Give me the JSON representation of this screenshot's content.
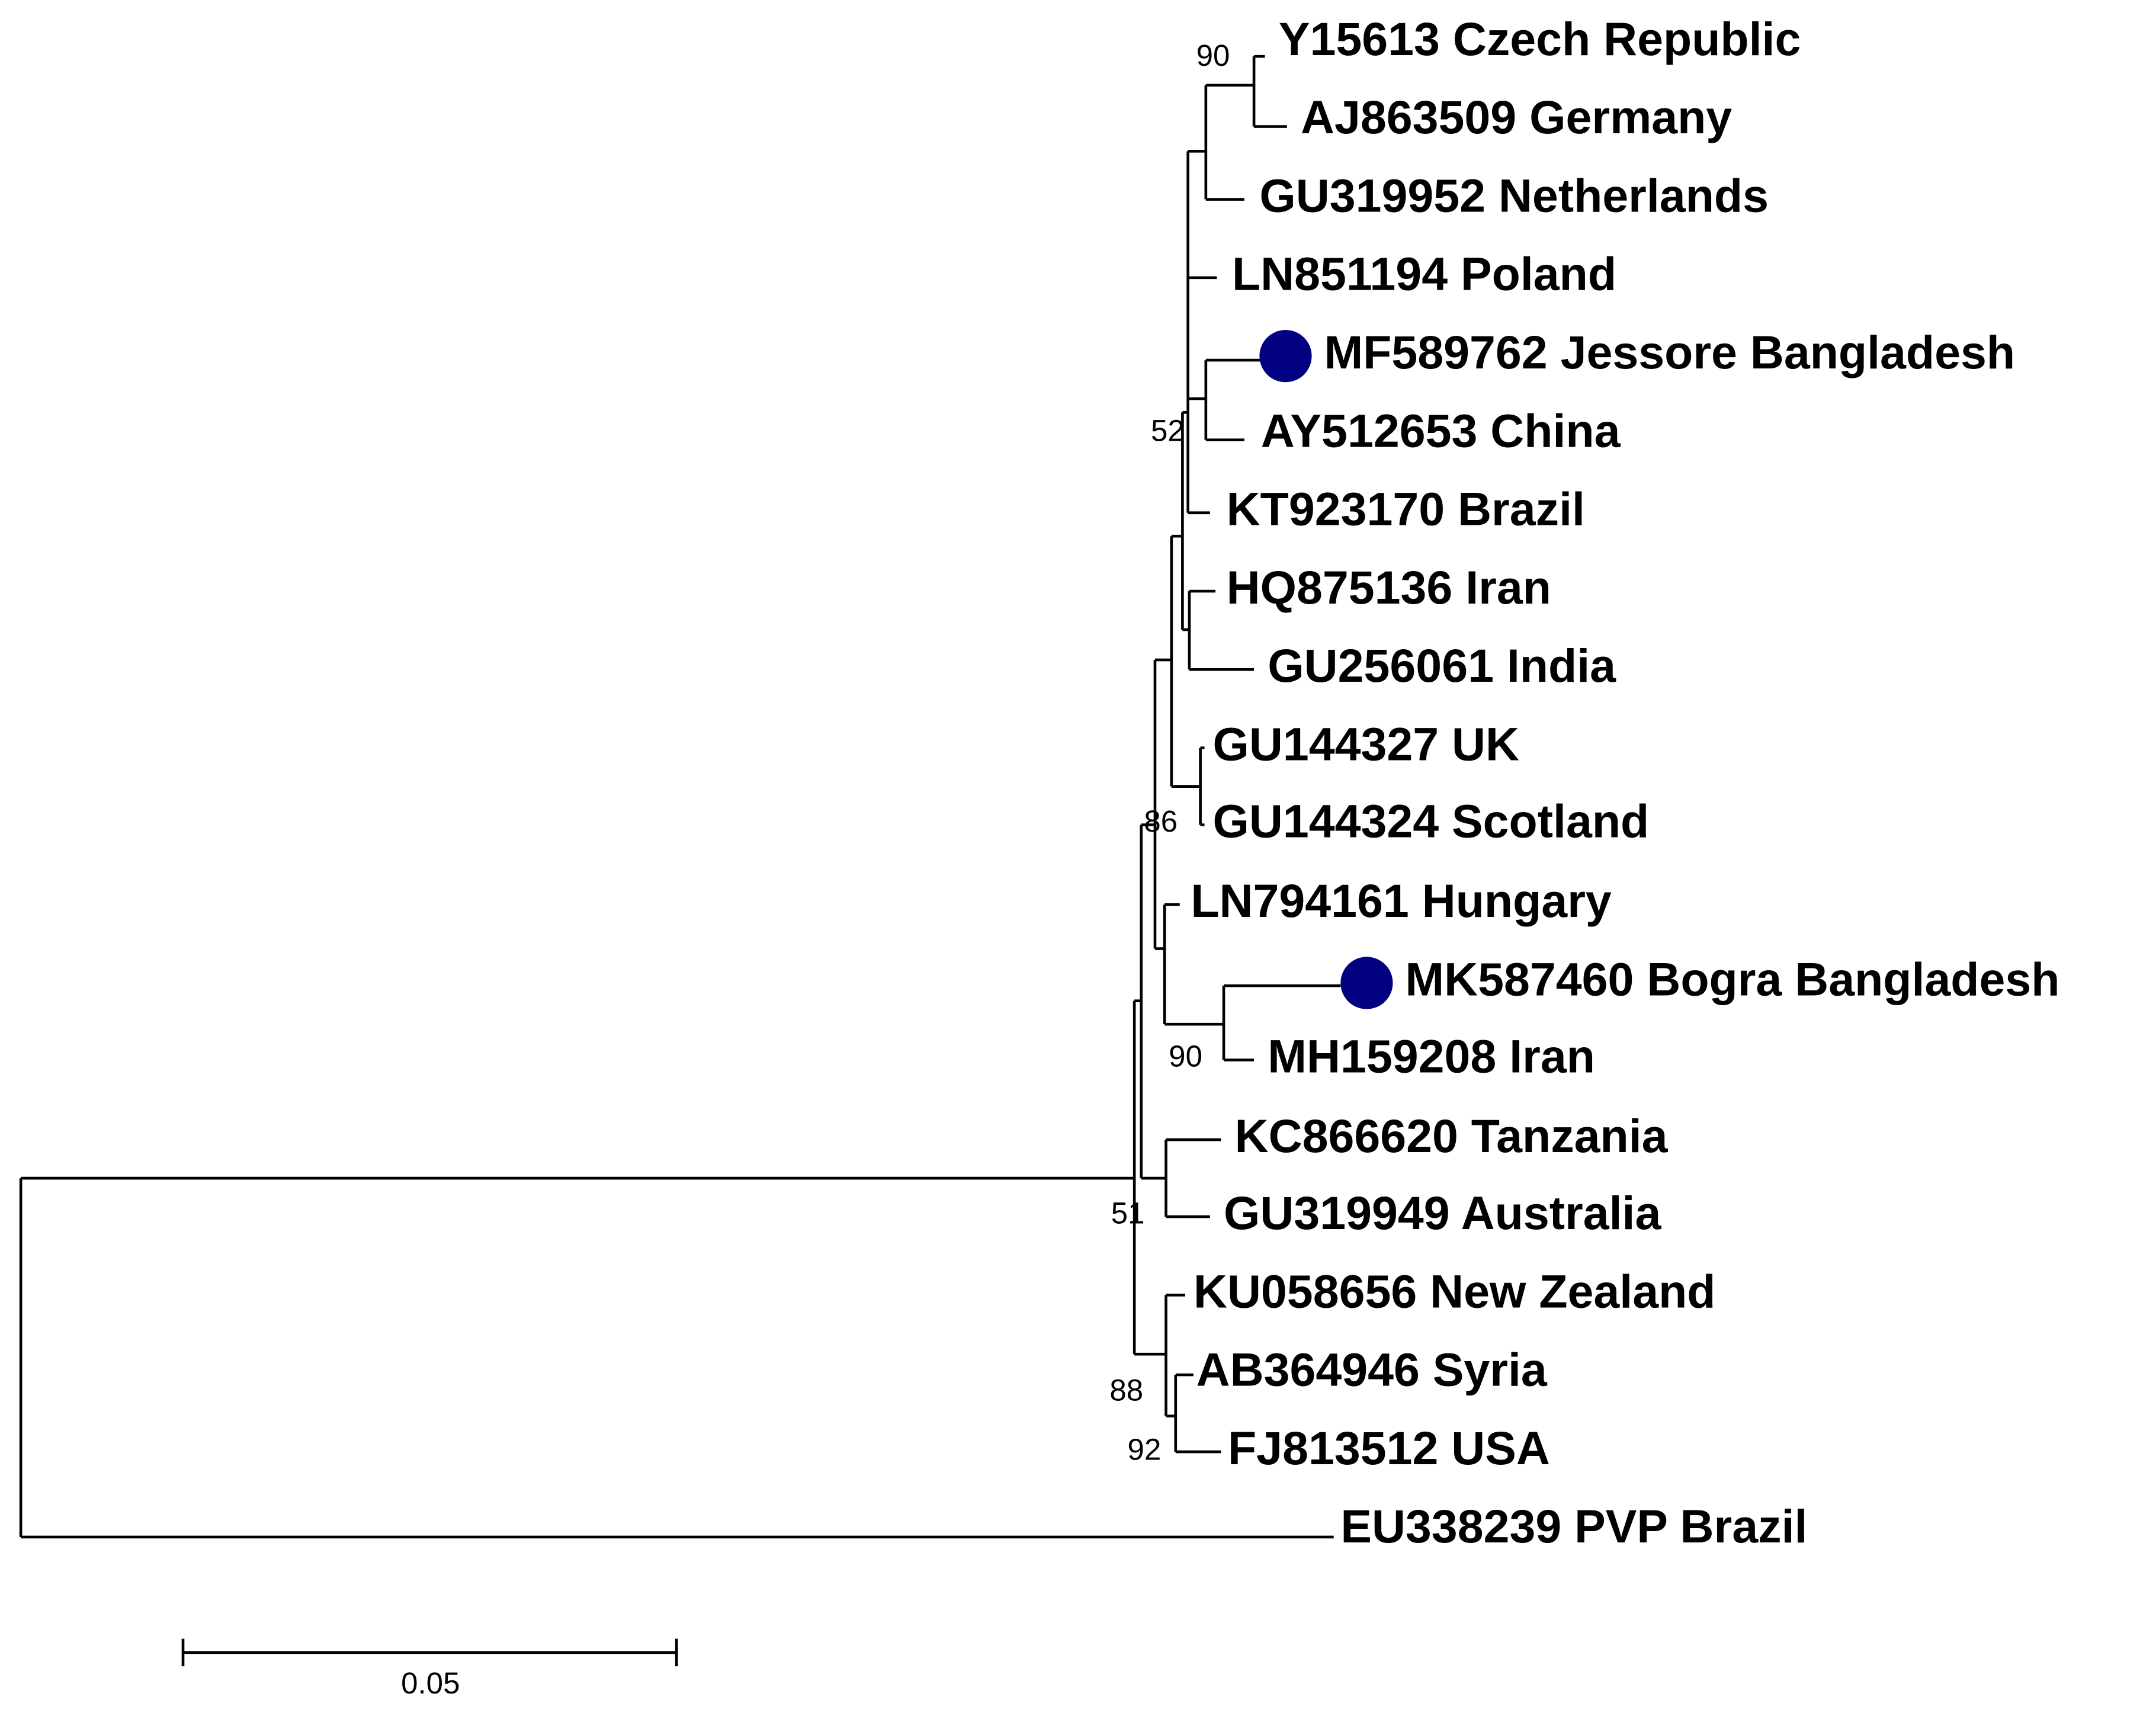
{
  "leaves": [
    {
      "label": "Y15613 Czech Republic"
    },
    {
      "label": "AJ863509 Germany"
    },
    {
      "label": "GU319952 Netherlands"
    },
    {
      "label": "LN851194 Poland"
    },
    {
      "label": "MF589762 Jessore Bangladesh"
    },
    {
      "label": "AY512653 China"
    },
    {
      "label": "KT923170 Brazil"
    },
    {
      "label": "HQ875136 Iran"
    },
    {
      "label": "GU256061 India"
    },
    {
      "label": "GU144327 UK"
    },
    {
      "label": "GU144324 Scotland"
    },
    {
      "label": "LN794161 Hungary"
    },
    {
      "label": "MK587460 Bogra Bangladesh"
    },
    {
      "label": "MH159208 Iran"
    },
    {
      "label": "KC866620 Tanzania"
    },
    {
      "label": "GU319949 Australia"
    },
    {
      "label": "KU058656 New Zealand"
    },
    {
      "label": "AB364946 Syria"
    },
    {
      "label": "FJ813512 USA"
    },
    {
      "label": "EU338239 PVP Brazil"
    }
  ],
  "bootstrap": [
    90,
    52,
    86,
    90,
    51,
    88,
    92
  ],
  "scale_bar": {
    "label": "0.05"
  }
}
